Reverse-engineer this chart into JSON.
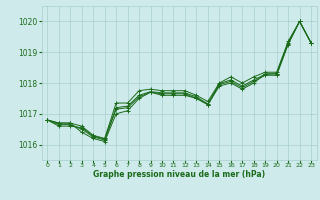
{
  "title": "Graphe pression niveau de la mer (hPa)",
  "bg_color": "#ceeaea",
  "grid_color": "#a8cece",
  "line_color": "#1a6b1a",
  "xlim": [
    -0.5,
    23.5
  ],
  "ylim": [
    1015.5,
    1020.5
  ],
  "yticks": [
    1016,
    1017,
    1018,
    1019,
    1020
  ],
  "xticks": [
    0,
    1,
    2,
    3,
    4,
    5,
    6,
    7,
    8,
    9,
    10,
    11,
    12,
    13,
    14,
    15,
    16,
    17,
    18,
    19,
    20,
    21,
    22,
    23
  ],
  "series": [
    [
      1016.8,
      1016.7,
      1016.7,
      1016.4,
      1016.2,
      1016.1,
      1017.0,
      1017.1,
      1017.5,
      1017.7,
      1017.6,
      1017.6,
      1017.6,
      1017.5,
      1017.3,
      1017.9,
      1018.0,
      1017.8,
      1018.0,
      1018.3,
      1018.3,
      1019.3,
      1020.0,
      1019.3
    ],
    [
      1016.8,
      1016.65,
      1016.65,
      1016.5,
      1016.25,
      1016.15,
      1017.15,
      1017.2,
      1017.55,
      1017.7,
      1017.65,
      1017.65,
      1017.65,
      1017.5,
      1017.3,
      1017.95,
      1018.05,
      1017.85,
      1018.05,
      1018.25,
      1018.25,
      1019.25,
      1020.0,
      1019.3
    ],
    [
      1016.8,
      1016.6,
      1016.6,
      1016.55,
      1016.28,
      1016.18,
      1017.2,
      1017.25,
      1017.6,
      1017.72,
      1017.68,
      1017.68,
      1017.68,
      1017.55,
      1017.32,
      1017.98,
      1018.1,
      1017.9,
      1018.1,
      1018.28,
      1018.3,
      1019.28,
      1020.0,
      1019.3
    ],
    [
      1016.8,
      1016.7,
      1016.7,
      1016.6,
      1016.3,
      1016.2,
      1017.35,
      1017.35,
      1017.75,
      1017.8,
      1017.75,
      1017.75,
      1017.75,
      1017.6,
      1017.4,
      1018.0,
      1018.2,
      1018.0,
      1018.2,
      1018.35,
      1018.35,
      1019.35,
      1020.0,
      1019.3
    ]
  ]
}
